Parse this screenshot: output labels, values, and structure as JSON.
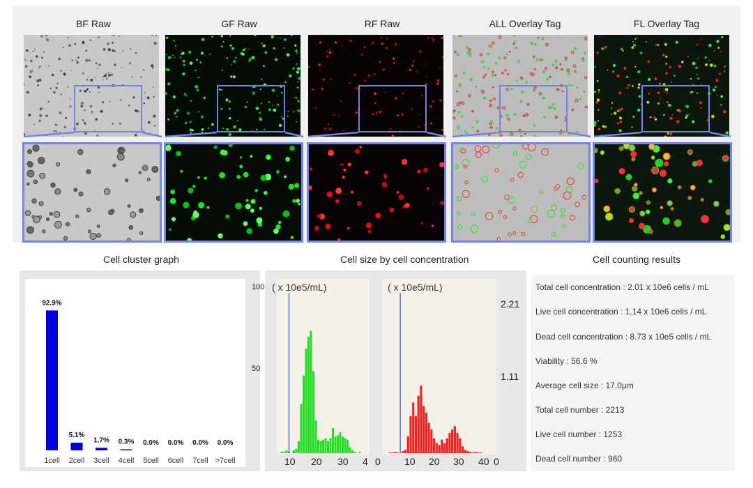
{
  "panels": [
    {
      "key": "bf",
      "title": "BF Raw"
    },
    {
      "key": "gf",
      "title": "GF Raw"
    },
    {
      "key": "rf",
      "title": "RF Raw"
    },
    {
      "key": "all",
      "title": "ALL Overlay Tag"
    },
    {
      "key": "fl",
      "title": "FL Overlay Tag"
    }
  ],
  "sections": {
    "cluster_title": "Cell cluster graph",
    "size_title": "Cell size by cell concentration",
    "results_title": "Cell counting results"
  },
  "colors": {
    "accent_frame": "#6f86e8",
    "cluster_bar": "#0000dd",
    "live_hist": "#22dd22",
    "dead_hist": "#ee2222",
    "gate_line": "#3344dd"
  },
  "chart_data": [
    {
      "type": "bar",
      "categories": [
        "1cell",
        "2cell",
        "3cell",
        "4cell",
        "5cell",
        "6cell",
        "7cell",
        ">7cell"
      ],
      "values": [
        92.9,
        5.1,
        1.7,
        0.3,
        0.0,
        0.0,
        0.0,
        0.0
      ],
      "labels": [
        "92.9%",
        "5.1%",
        "1.7%",
        "0.3%",
        "0.0%",
        "0.0%",
        "0.0%",
        "0.0%"
      ],
      "ylim": [
        0,
        100
      ]
    },
    {
      "type": "bar",
      "name": "live",
      "unit_label": "( x 10e5/mL)",
      "y_ticks": [
        "100",
        "50"
      ],
      "x_ticks": [
        "10",
        "20",
        "30",
        "4"
      ],
      "xlim": [
        2,
        40
      ],
      "ylim": [
        0,
        100
      ],
      "gate": 7,
      "x": [
        4,
        5,
        6,
        7,
        8,
        9,
        10,
        11,
        12,
        13,
        14,
        15,
        16,
        17,
        18,
        19,
        20,
        21,
        22,
        23,
        24,
        25,
        26,
        27,
        28,
        29,
        30,
        31,
        32,
        33,
        34,
        35,
        36
      ],
      "values": [
        1,
        1,
        2,
        1,
        0,
        2,
        3,
        8,
        33,
        52,
        70,
        78,
        82,
        55,
        22,
        9,
        8,
        9,
        10,
        8,
        10,
        17,
        11,
        12,
        14,
        11,
        10,
        9,
        4,
        2,
        1,
        0,
        1
      ]
    },
    {
      "type": "bar",
      "name": "dead",
      "unit_label": "( x 10e5/mL)",
      "y_ticks": [
        "2.21",
        "1.11"
      ],
      "x_ticks": [
        "0",
        "10",
        "20",
        "30",
        "40",
        "0"
      ],
      "xlim": [
        0,
        44
      ],
      "ylim": [
        0,
        2.21
      ],
      "gate": 7,
      "x": [
        3,
        4,
        5,
        6,
        7,
        8,
        9,
        10,
        11,
        12,
        13,
        14,
        15,
        16,
        17,
        18,
        19,
        20,
        21,
        22,
        23,
        24,
        25,
        26,
        27,
        28,
        29,
        30,
        31,
        32,
        33,
        34,
        35,
        36,
        37,
        38
      ],
      "values": [
        0.01,
        0.01,
        0.02,
        0.01,
        0.0,
        0.03,
        0.05,
        0.25,
        0.55,
        0.75,
        0.55,
        0.85,
        1.0,
        0.7,
        0.6,
        0.45,
        0.35,
        0.22,
        0.15,
        0.12,
        0.2,
        0.15,
        0.22,
        0.3,
        0.35,
        0.4,
        0.3,
        0.22,
        0.1,
        0.05,
        0.03,
        0.02,
        0.01,
        0.02,
        0.01,
        0.01
      ]
    }
  ],
  "results": [
    "Total cell concentration : 2.01 x 10e6 cells / mL",
    "Live cell concentration : 1.14 x 10e6 cells / mL",
    "Dead cell concentration : 8.73 x 10e5 cells / mL",
    "Viability : 56.6 %",
    "Average cell size : 17.0μm",
    "Total cell number : 2213",
    "Live cell number : 1253",
    "Dead cell number : 960"
  ]
}
